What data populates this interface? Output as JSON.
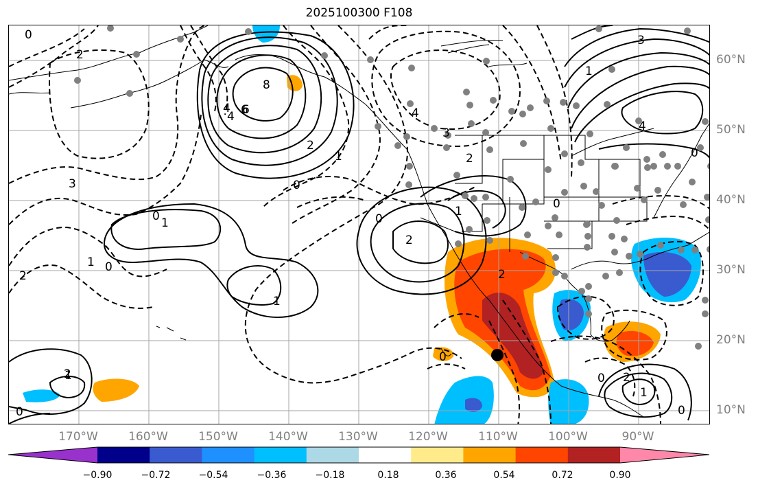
{
  "title": "2025100300 F108",
  "lon_labels": [
    "170°W",
    "160°W",
    "150°W",
    "140°W",
    "130°W",
    "120°W",
    "110°W",
    "100°W",
    "90°W"
  ],
  "lat_labels": [
    "60°N",
    "50°N",
    "40°N",
    "30°N",
    "20°N",
    "10°N"
  ],
  "colorbar": {
    "colors": [
      "#9932CC",
      "#00008B",
      "#3A5BD0",
      "#1E90FF",
      "#00BFFF",
      "#ADD8E6",
      "#FFFFFF",
      "#FFEB8A",
      "#FFA500",
      "#FF4500",
      "#B22222",
      "#FF88AA"
    ],
    "ticks": [
      "−0.90",
      "−0.72",
      "−0.54",
      "−0.36",
      "−0.18",
      "0.18",
      "0.36",
      "0.54",
      "0.72",
      "0.90"
    ]
  },
  "contour_labels": [
    {
      "id": "contour-label-8",
      "text": "8"
    },
    {
      "id": "contour-label-6",
      "text": "6"
    },
    {
      "id": "contour-label-4",
      "text": "4"
    },
    {
      "id": "contour-label-2a",
      "text": "2"
    },
    {
      "id": "contour-label-1a",
      "text": "1"
    },
    {
      "id": "contour-label-0a",
      "text": "0"
    },
    {
      "id": "contour-label-1b",
      "text": "1"
    },
    {
      "id": "contour-label-0b",
      "text": "0"
    },
    {
      "id": "contour-label-1c",
      "text": "1"
    },
    {
      "id": "contour-label-3",
      "text": "3"
    },
    {
      "id": "contour-label-2b",
      "text": "2"
    },
    {
      "id": "contour-label-0c",
      "text": "0"
    },
    {
      "id": "contour-label-2c",
      "text": "2"
    },
    {
      "id": "contour-label-0d",
      "text": "0"
    },
    {
      "id": "contour-label-2d",
      "text": "2"
    },
    {
      "id": "contour-label-4b",
      "text": "4"
    },
    {
      "id": "contour-label-3b",
      "text": "3"
    },
    {
      "id": "contour-label-2e",
      "text": "2"
    },
    {
      "id": "contour-label-0e",
      "text": "0"
    },
    {
      "id": "contour-label-1d",
      "text": "1"
    },
    {
      "id": "contour-label-0f",
      "text": "0"
    },
    {
      "id": "contour-label-1e",
      "text": "1"
    },
    {
      "id": "contour-label-0g",
      "text": "0"
    },
    {
      "id": "contour-label-2f",
      "text": "2"
    },
    {
      "id": "contour-label-4c",
      "text": "4"
    },
    {
      "id": "contour-label-3c",
      "text": "3"
    },
    {
      "id": "contour-label-1f",
      "text": "1"
    },
    {
      "id": "contour-label-0h",
      "text": "0"
    },
    {
      "id": "contour-label-2g",
      "text": "2"
    },
    {
      "id": "contour-label-6b",
      "text": "6"
    },
    {
      "id": "contour-label-4d",
      "text": "4"
    },
    {
      "id": "contour-label-1g",
      "text": "1"
    },
    {
      "id": "contour-label-0i",
      "text": "0"
    },
    {
      "id": "contour-label-1h",
      "text": "1"
    },
    {
      "id": "contour-label-0j",
      "text": "0"
    },
    {
      "id": "contour-label-0k",
      "text": "0"
    },
    {
      "id": "contour-label-2h",
      "text": "2"
    }
  ]
}
